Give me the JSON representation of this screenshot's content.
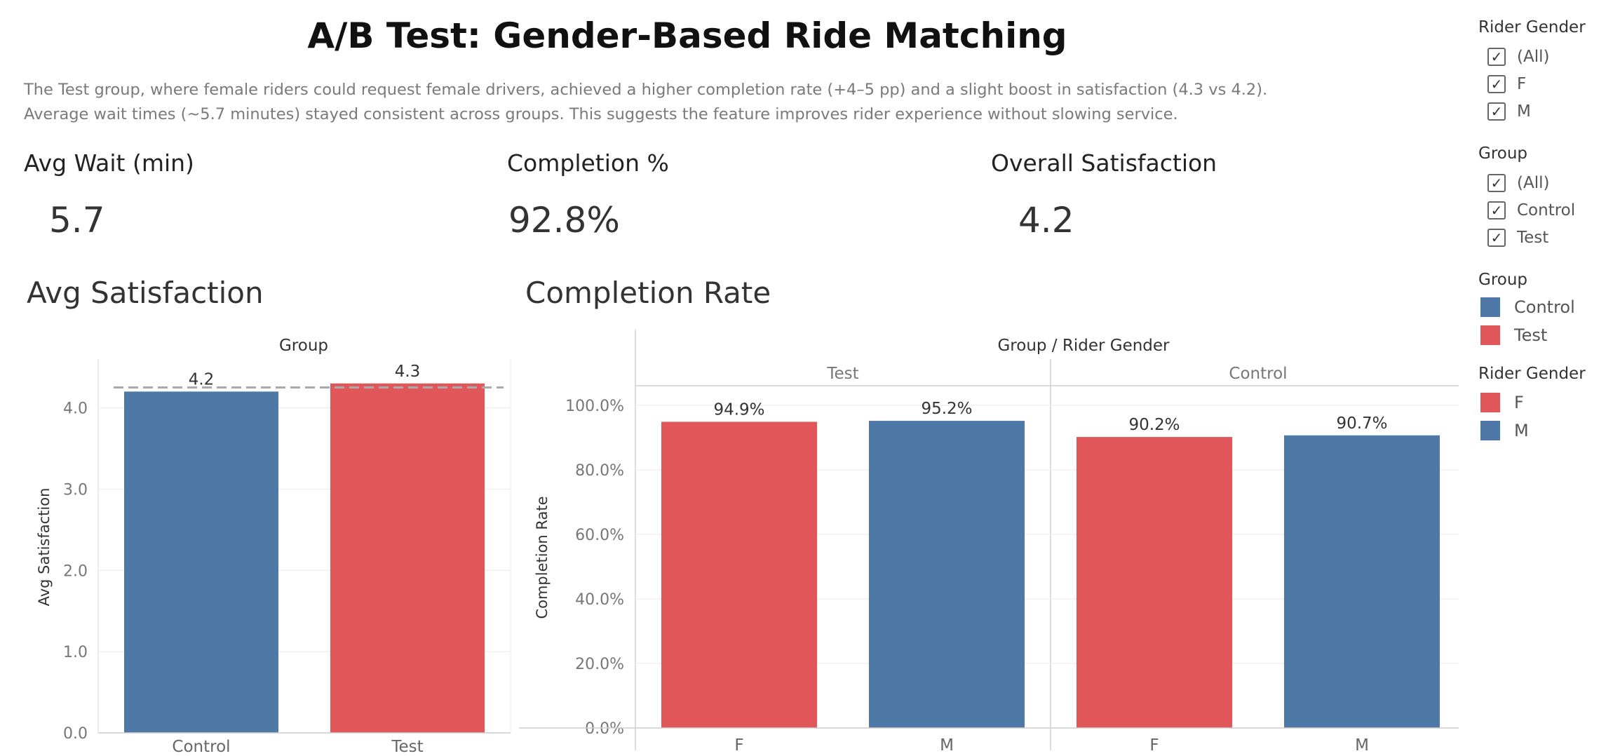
{
  "dashboard": {
    "title": "A/B Test: Gender-Based Ride Matching",
    "description_line1": "The Test group, where female riders could request female drivers, achieved a higher completion rate (+4–5 pp) and a slight boost in satisfaction (4.3 vs 4.2).",
    "description_line2": "Average wait times (~5.7 minutes) stayed consistent across groups. This suggests the feature improves rider experience without slowing service."
  },
  "kpis": [
    {
      "label": "Avg Wait (min)",
      "value": "5.7"
    },
    {
      "label": "Completion %",
      "value": "92.8%"
    },
    {
      "label": "Overall Satisfaction",
      "value": "4.2"
    }
  ],
  "colors": {
    "control": "#4e79a7",
    "test": "#e15759",
    "f": "#e15759",
    "m": "#4e79a7"
  },
  "filters": {
    "rider_gender": {
      "title": "Rider Gender",
      "items": [
        {
          "label": "(All)"
        },
        {
          "label": "F"
        },
        {
          "label": "M"
        }
      ]
    },
    "group": {
      "title": "Group",
      "items": [
        {
          "label": "(All)"
        },
        {
          "label": "Control"
        },
        {
          "label": "Test"
        }
      ]
    }
  },
  "legends": {
    "group": {
      "title": "Group",
      "items": [
        {
          "label": "Control",
          "color": "#4e79a7"
        },
        {
          "label": "Test",
          "color": "#e15759"
        }
      ]
    },
    "rider_gender": {
      "title": "Rider Gender",
      "items": [
        {
          "label": "F",
          "color": "#e15759"
        },
        {
          "label": "M",
          "color": "#4e79a7"
        }
      ]
    }
  },
  "chart_data": [
    {
      "type": "bar",
      "title": "Avg Satisfaction",
      "header": "Group",
      "ylabel": "Avg Satisfaction",
      "xlabel": "",
      "categories": [
        "Control",
        "Test"
      ],
      "values": [
        4.2,
        4.3
      ],
      "value_labels": [
        "4.2",
        "4.3"
      ],
      "colors": [
        "#4e79a7",
        "#e15759"
      ],
      "ylim": [
        0,
        4.6
      ],
      "yticks": [
        0,
        1,
        2,
        3,
        4
      ],
      "ytick_labels": [
        "0.0",
        "1.0",
        "2.0",
        "3.0",
        "4.0"
      ],
      "reference_line": 4.25,
      "grid": true
    },
    {
      "type": "bar",
      "title": "Completion Rate",
      "header": "Group  /  Rider Gender",
      "ylabel": "Completion Rate",
      "xlabel": "",
      "panels": [
        {
          "group": "Test",
          "categories": [
            "F",
            "M"
          ],
          "values": [
            94.9,
            95.2
          ],
          "value_labels": [
            "94.9%",
            "95.2%"
          ],
          "colors": [
            "#e15759",
            "#4e79a7"
          ]
        },
        {
          "group": "Control",
          "categories": [
            "F",
            "M"
          ],
          "values": [
            90.2,
            90.7
          ],
          "value_labels": [
            "90.2%",
            "90.7%"
          ],
          "colors": [
            "#e15759",
            "#4e79a7"
          ]
        }
      ],
      "ylim": [
        0,
        100
      ],
      "yticks": [
        0,
        20,
        40,
        60,
        80,
        100
      ],
      "ytick_labels": [
        "0.0%",
        "20.0%",
        "40.0%",
        "60.0%",
        "80.0%",
        "100.0%"
      ],
      "grid": true
    }
  ]
}
